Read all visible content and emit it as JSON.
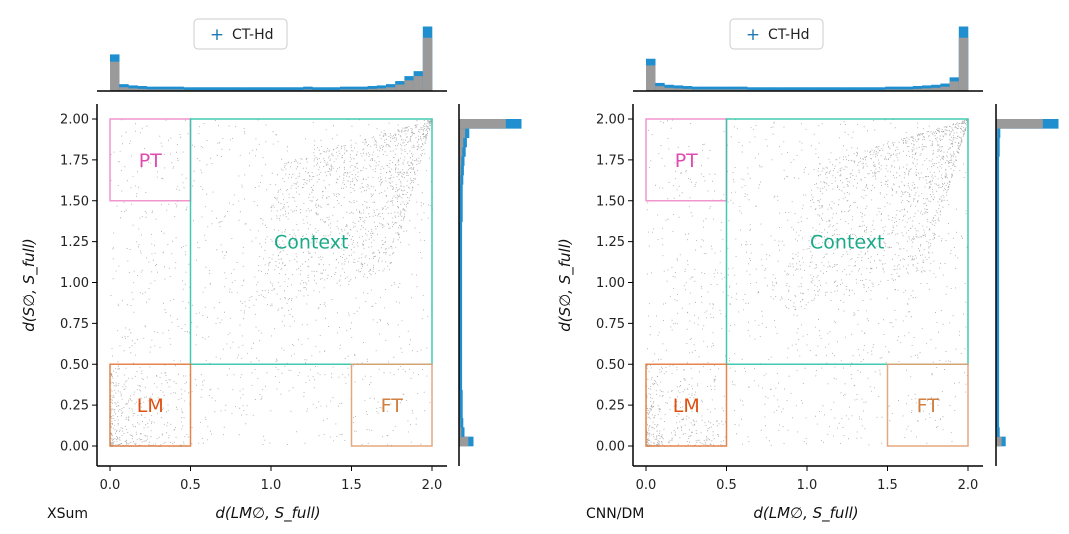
{
  "chart_data": [
    {
      "type": "scatter",
      "dataset_label": "XSum",
      "xlabel": "d(LM∅, S_full)",
      "ylabel": "d(S∅, S_full)",
      "xlim": [
        -0.05,
        2.05
      ],
      "ylim": [
        -0.05,
        2.05
      ],
      "xticks": [
        "0.0",
        "0.5",
        "1.0",
        "1.5",
        "2.0"
      ],
      "yticks": [
        "0.00",
        "0.25",
        "0.50",
        "0.75",
        "1.00",
        "1.25",
        "1.50",
        "1.75",
        "2.00"
      ],
      "legend": {
        "entries": [
          "CT-Hd"
        ],
        "placement": "top-center"
      },
      "regions": [
        {
          "label": "PT",
          "x": [
            0.0,
            0.5
          ],
          "y": [
            1.5,
            2.0
          ],
          "color": "#f08ac8"
        },
        {
          "label": "Context",
          "x": [
            0.5,
            2.0
          ],
          "y": [
            0.5,
            2.0
          ],
          "color": "#2ec4a8"
        },
        {
          "label": "LM",
          "x": [
            0.0,
            0.5
          ],
          "y": [
            0.0,
            0.5
          ],
          "color": "#e07838"
        },
        {
          "label": "FT",
          "x": [
            1.5,
            2.0
          ],
          "y": [
            0.0,
            0.5
          ],
          "color": "#e0a070"
        }
      ],
      "region_text_colors": {
        "PT": "#e04bb0",
        "Context": "#1aaa88",
        "LM": "#e05010",
        "FT": "#d08040"
      },
      "top_hist": [
        0.55,
        0.07,
        0.05,
        0.04,
        0.03,
        0.03,
        0.03,
        0.03,
        0.02,
        0.02,
        0.02,
        0.02,
        0.02,
        0.02,
        0.02,
        0.02,
        0.02,
        0.02,
        0.02,
        0.02,
        0.02,
        0.03,
        0.02,
        0.02,
        0.02,
        0.03,
        0.03,
        0.03,
        0.04,
        0.05,
        0.07,
        0.12,
        0.2,
        0.28,
        1.0
      ],
      "right_hist": [
        0.2,
        0.05,
        0.03,
        0.02,
        0.02,
        0.02,
        0.01,
        0.01,
        0.01,
        0.01,
        0.01,
        0.01,
        0.01,
        0.01,
        0.01,
        0.01,
        0.01,
        0.01,
        0.01,
        0.01,
        0.01,
        0.01,
        0.01,
        0.01,
        0.02,
        0.02,
        0.02,
        0.02,
        0.03,
        0.04,
        0.05,
        0.07,
        0.09,
        0.13,
        1.0
      ]
    },
    {
      "type": "scatter",
      "dataset_label": "CNN/DM",
      "xlabel": "d(LM∅, S_full)",
      "ylabel": "d(S∅, S_full)",
      "xlim": [
        -0.05,
        2.05
      ],
      "ylim": [
        -0.05,
        2.05
      ],
      "xticks": [
        "0.0",
        "0.5",
        "1.0",
        "1.5",
        "2.0"
      ],
      "yticks": [
        "0.00",
        "0.25",
        "0.50",
        "0.75",
        "1.00",
        "1.25",
        "1.50",
        "1.75",
        "2.00"
      ],
      "legend": {
        "entries": [
          "CT-Hd"
        ],
        "placement": "top-center"
      },
      "regions": [
        {
          "label": "PT",
          "x": [
            0.0,
            0.5
          ],
          "y": [
            1.5,
            2.0
          ],
          "color": "#f08ac8"
        },
        {
          "label": "Context",
          "x": [
            0.5,
            2.0
          ],
          "y": [
            0.5,
            2.0
          ],
          "color": "#2ec4a8"
        },
        {
          "label": "LM",
          "x": [
            0.0,
            0.5
          ],
          "y": [
            0.0,
            0.5
          ],
          "color": "#e07838"
        },
        {
          "label": "FT",
          "x": [
            1.5,
            2.0
          ],
          "y": [
            0.0,
            0.5
          ],
          "color": "#e0a070"
        }
      ],
      "region_text_colors": {
        "PT": "#e04bb0",
        "Context": "#1aaa88",
        "LM": "#e05010",
        "FT": "#d08040"
      },
      "top_hist": [
        0.48,
        0.09,
        0.06,
        0.05,
        0.04,
        0.03,
        0.03,
        0.03,
        0.03,
        0.03,
        0.03,
        0.02,
        0.02,
        0.02,
        0.02,
        0.02,
        0.02,
        0.02,
        0.02,
        0.02,
        0.02,
        0.02,
        0.02,
        0.02,
        0.02,
        0.02,
        0.03,
        0.03,
        0.03,
        0.04,
        0.05,
        0.06,
        0.08,
        0.18,
        1.0
      ],
      "right_hist": [
        0.12,
        0.02,
        0.01,
        0.01,
        0.01,
        0.01,
        0.01,
        0.01,
        0.01,
        0.01,
        0.01,
        0.01,
        0.01,
        0.01,
        0.01,
        0.01,
        0.01,
        0.01,
        0.01,
        0.01,
        0.01,
        0.01,
        0.01,
        0.01,
        0.01,
        0.01,
        0.01,
        0.01,
        0.01,
        0.01,
        0.01,
        0.02,
        0.02,
        0.03,
        1.0
      ]
    }
  ],
  "colors": {
    "points": "#a8a8a8",
    "hist_gray": "#9a9a9a",
    "hist_blue": "#1f8fd0",
    "legend_marker": "#1f77b4"
  }
}
